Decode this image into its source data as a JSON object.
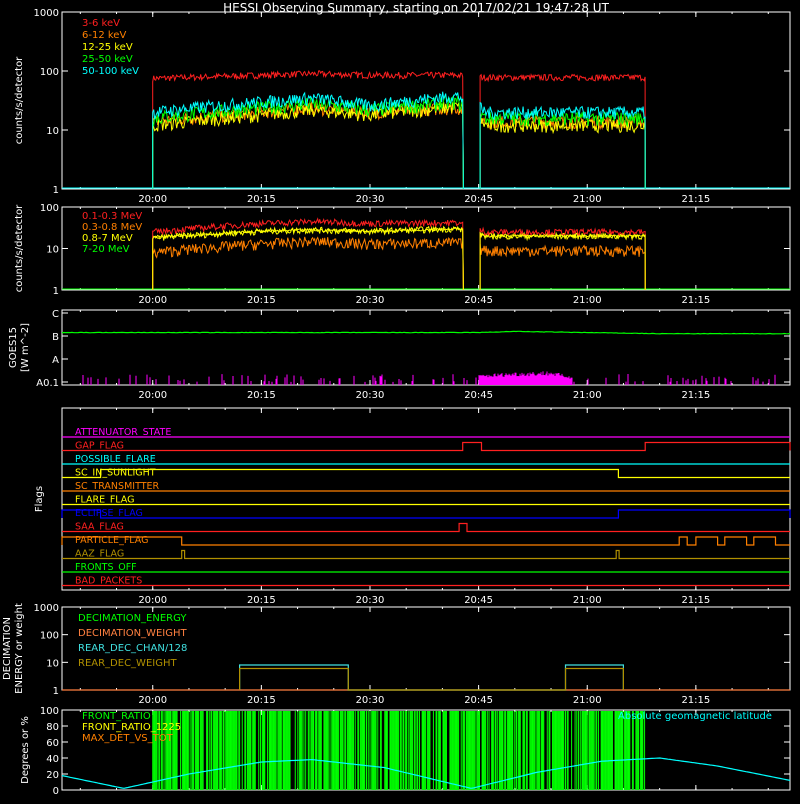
{
  "title": "HESSI Observing Summary, starting on 2017/02/21 19:47:28 UT",
  "colors": {
    "background": "#000000",
    "axes": "#ffffff",
    "red": "#ff2020",
    "orange": "#ff8000",
    "yellow": "#ffff00",
    "green": "#00ff00",
    "cyan": "#00ffff",
    "magenta": "#ff00ff",
    "blue": "#0000ff",
    "olive": "#b09000",
    "peach": "#ff8040",
    "lightcyan": "#40e0e0"
  },
  "time_axis": {
    "start": "19:47:28",
    "end": "21:28:00",
    "tick_labels": [
      "20:00",
      "20:15",
      "20:30",
      "20:45",
      "21:00",
      "21:15"
    ],
    "tick_minutes": [
      1200,
      1215,
      1230,
      1245,
      1260,
      1275
    ],
    "xlim_minutes": [
      1187.47,
      1288.0
    ]
  },
  "chart_data": [
    {
      "type": "line",
      "panel": "low-energy-rates",
      "ylabel": "counts/s/detector",
      "yscale": "log",
      "ylim": [
        1,
        1000
      ],
      "yticks": [
        "1",
        "10",
        "100",
        "1000"
      ],
      "coverage_minutes": [
        [
          1200.0,
          1242.9
        ],
        [
          1245.2,
          1268.0
        ]
      ],
      "legend_placement": "top-left",
      "series": [
        {
          "name": "3-6 keV",
          "color": "#ff2020",
          "x": [
            1200,
            1215,
            1222,
            1230,
            1242,
            1246,
            1255,
            1268
          ],
          "y": [
            75,
            85,
            90,
            85,
            85,
            78,
            78,
            78
          ]
        },
        {
          "name": "6-12 keV",
          "color": "#ff8000",
          "x": [
            1200,
            1215,
            1222,
            1230,
            1242,
            1246,
            1255,
            1268
          ],
          "y": [
            14,
            20,
            24,
            20,
            24,
            14,
            14,
            14
          ]
        },
        {
          "name": "12-25 keV",
          "color": "#ffff00",
          "x": [
            1200,
            1215,
            1222,
            1230,
            1242,
            1246,
            1255,
            1268
          ],
          "y": [
            12,
            18,
            22,
            18,
            25,
            12,
            12,
            12
          ]
        },
        {
          "name": "25-50 keV",
          "color": "#00ff00",
          "x": [
            1200,
            1215,
            1222,
            1230,
            1242,
            1246,
            1255,
            1268
          ],
          "y": [
            16,
            24,
            28,
            22,
            30,
            16,
            16,
            16
          ]
        },
        {
          "name": "50-100 keV",
          "color": "#00ffff",
          "x": [
            1200,
            1215,
            1222,
            1230,
            1242,
            1246,
            1255,
            1268
          ],
          "y": [
            20,
            30,
            35,
            26,
            38,
            20,
            20,
            20
          ]
        }
      ]
    },
    {
      "type": "line",
      "panel": "high-energy-rates",
      "ylabel": "counts/s/detector",
      "yscale": "log",
      "ylim": [
        1,
        100
      ],
      "yticks": [
        "1",
        "10",
        "100"
      ],
      "coverage_minutes": [
        [
          1200.0,
          1242.9
        ],
        [
          1245.2,
          1268.0
        ]
      ],
      "legend_placement": "top-left",
      "series": [
        {
          "name": "0.1-0.3 MeV",
          "color": "#ff2020",
          "x": [
            1200,
            1215,
            1222,
            1230,
            1242,
            1246,
            1268
          ],
          "y": [
            25,
            40,
            45,
            40,
            42,
            25,
            25
          ]
        },
        {
          "name": "0.3-0.8 MeV",
          "color": "#ff8000",
          "x": [
            1200,
            1215,
            1222,
            1230,
            1242,
            1246,
            1268
          ],
          "y": [
            8,
            13,
            15,
            13,
            14,
            9,
            9
          ]
        },
        {
          "name": "0.8-7 MeV",
          "color": "#ffff00",
          "x": [
            1200,
            1215,
            1222,
            1230,
            1242,
            1246,
            1268
          ],
          "y": [
            18,
            26,
            28,
            26,
            30,
            20,
            20
          ]
        },
        {
          "name": "7-20 MeV",
          "color": "#00ff00",
          "x": [
            1187.47,
            1288
          ],
          "y": [
            1,
            1
          ]
        }
      ]
    },
    {
      "type": "line",
      "panel": "goes",
      "ylabel": "GOES15",
      "ylabel2": "[W m^-2]",
      "yticks": [
        "A0.1",
        "A",
        "B",
        "C"
      ],
      "series": [
        {
          "name": "GOES long",
          "color": "#00ff00",
          "x": [
            1187.47,
            1230,
            1245,
            1250,
            1270,
            1288
          ],
          "y_level": [
            2.15,
            2.15,
            2.15,
            2.2,
            2.1,
            2.1
          ]
        },
        {
          "name": "GOES short",
          "color": "#ff00ff",
          "x": [
            1245,
            1250,
            1255,
            1258
          ],
          "y_level": [
            0.3,
            0.4,
            0.45,
            0.2
          ]
        }
      ]
    },
    {
      "type": "flags",
      "panel": "flags",
      "ylabel": "Flags",
      "flags": [
        {
          "name": "ATTENUATOR_STATE",
          "color": "#ff00ff",
          "high": []
        },
        {
          "name": "GAP_FLAG",
          "color": "#ff2020",
          "high": [
            [
              1242.8,
              1245.4
            ],
            [
              1268.0,
              1288
            ]
          ]
        },
        {
          "name": "POSSIBLE_FLARE",
          "color": "#00ffff",
          "high": []
        },
        {
          "name": "SC_IN_SUNLIGHT",
          "color": "#ffff00",
          "high": [
            [
              1192.8,
              1264.3
            ]
          ]
        },
        {
          "name": "SC_TRANSMITTER",
          "color": "#ff8000",
          "high": []
        },
        {
          "name": "FLARE_FLAG",
          "color": "#ffff00",
          "high": []
        },
        {
          "name": "ECLIPSE_FLAG",
          "color": "#0000ff",
          "high": [
            [
              1187.47,
              1192.8
            ],
            [
              1264.3,
              1288
            ]
          ]
        },
        {
          "name": "SAA_FLAG",
          "color": "#ff2020",
          "high": [
            [
              1242.3,
              1243.4
            ]
          ]
        },
        {
          "name": "PARTICLE_FLAG",
          "color": "#ff8000",
          "high": [
            [
              1187.47,
              1204
            ],
            [
              1272.7,
              1273.8
            ],
            [
              1275,
              1278
            ],
            [
              1279,
              1282
            ],
            [
              1283,
              1286
            ]
          ]
        },
        {
          "name": "AAZ_FLAG",
          "color": "#b09000",
          "high": [
            [
              1204.0,
              1204.4
            ],
            [
              1264.0,
              1264.4
            ]
          ]
        },
        {
          "name": "FRONTS_OFF",
          "color": "#00ff00",
          "high": []
        },
        {
          "name": "BAD_PACKETS",
          "color": "#ff2020",
          "high": []
        }
      ]
    },
    {
      "type": "line",
      "panel": "decimation",
      "ylabel": "DECIMATION",
      "ylabel2": "ENERGY or weight",
      "yscale": "log",
      "ylim": [
        1,
        1000
      ],
      "yticks": [
        "1",
        "10",
        "100",
        "1000"
      ],
      "legend_placement": "top-left",
      "series": [
        {
          "name": "DECIMATION_ENERGY",
          "color": "#00ff00",
          "x": [],
          "y": []
        },
        {
          "name": "DECIMATION_WEIGHT",
          "color": "#ff8040",
          "x": [
            1187.47,
            1288
          ],
          "y": [
            1,
            1
          ]
        },
        {
          "name": "REAR_DEC_CHAN/128",
          "color": "#40e0e0",
          "x": [
            1212,
            1212,
            1227,
            1227,
            1257,
            1257,
            1265,
            1265
          ],
          "y": [
            1,
            8,
            8,
            1,
            1,
            8,
            8,
            1
          ]
        },
        {
          "name": "REAR_DEC_WEIGHT",
          "color": "#b09000",
          "x": [
            1212,
            1212,
            1227,
            1227,
            1257,
            1257,
            1265,
            1265
          ],
          "y": [
            1,
            6,
            6,
            1,
            1,
            6,
            6,
            1
          ]
        }
      ]
    },
    {
      "type": "line",
      "panel": "ratios",
      "ylabel": "Degrees or %",
      "ylim": [
        0,
        100
      ],
      "yticks": [
        "0",
        "20",
        "40",
        "60",
        "80",
        "100"
      ],
      "legend_placement": "top-left",
      "series": [
        {
          "name": "FRONT_RATIO",
          "color": "#00ff00",
          "x": [
            1200,
            1268
          ],
          "y": [
            100,
            100
          ]
        },
        {
          "name": "FRONT_RATIO_1225",
          "color": "#ffff00",
          "x": [],
          "y": []
        },
        {
          "name": "MAX_DET_VS_TOT",
          "color": "#ff8000",
          "x": [],
          "y": []
        },
        {
          "name": "Absolute geomagnetic latitude",
          "color": "#00ffff",
          "x": [
            1187.47,
            1196,
            1205,
            1215,
            1222,
            1232,
            1244,
            1253,
            1262,
            1270,
            1278,
            1288
          ],
          "y": [
            18,
            2,
            20,
            35,
            38,
            28,
            2,
            22,
            36,
            40,
            30,
            12
          ]
        }
      ]
    }
  ]
}
